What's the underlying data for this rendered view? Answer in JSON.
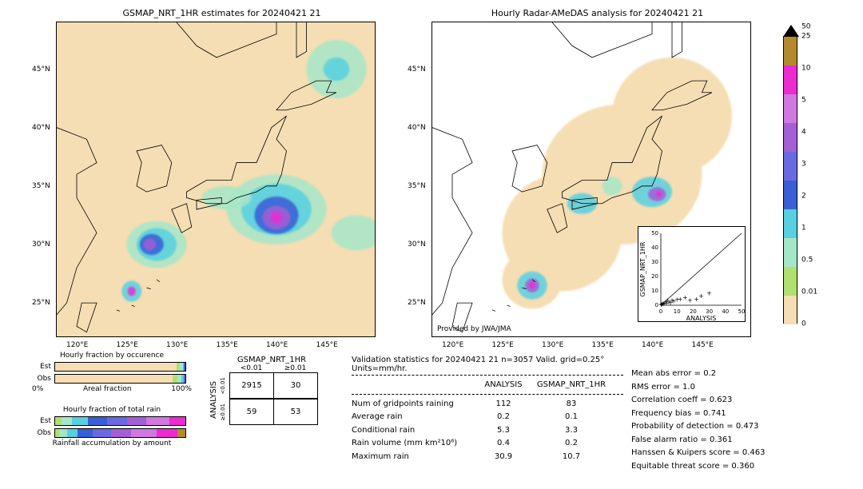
{
  "maps": {
    "left": {
      "title": "GSMAP_NRT_1HR estimates for 20240421 21"
    },
    "right": {
      "title": "Hourly Radar-AMeDAS analysis for 20240421 21",
      "provided": "Provided by JWA/JMA"
    },
    "lon_ticks": [
      120,
      125,
      130,
      135,
      140,
      145
    ],
    "lat_ticks": [
      25,
      30,
      35,
      40,
      45
    ],
    "lon_range": [
      118,
      150
    ],
    "lat_range": [
      22,
      49
    ],
    "background_color": "#f5deb3"
  },
  "precip_blobs_left": [
    {
      "lon": 128,
      "lat": 30,
      "rx": 3.0,
      "ry": 2.0,
      "color": "#a6e6c8"
    },
    {
      "lon": 128,
      "lat": 30,
      "rx": 2.0,
      "ry": 1.4,
      "color": "#57d0e0"
    },
    {
      "lon": 127.5,
      "lat": 30,
      "rx": 1.2,
      "ry": 0.9,
      "color": "#3a5ed6"
    },
    {
      "lon": 127.3,
      "lat": 30,
      "rx": 0.6,
      "ry": 0.5,
      "color": "#a45ed6"
    },
    {
      "lon": 140,
      "lat": 33,
      "rx": 5.0,
      "ry": 3.0,
      "color": "#a6e6c8"
    },
    {
      "lon": 140,
      "lat": 33,
      "rx": 3.5,
      "ry": 2.2,
      "color": "#57d0e0"
    },
    {
      "lon": 140,
      "lat": 32.5,
      "rx": 2.2,
      "ry": 1.6,
      "color": "#3a5ed6"
    },
    {
      "lon": 140,
      "lat": 32.3,
      "rx": 1.4,
      "ry": 1.0,
      "color": "#a45ed6"
    },
    {
      "lon": 140,
      "lat": 32.3,
      "rx": 0.6,
      "ry": 0.5,
      "color": "#ec2bd0"
    },
    {
      "lon": 125.5,
      "lat": 26,
      "rx": 1.0,
      "ry": 0.9,
      "color": "#57d0e0"
    },
    {
      "lon": 125.5,
      "lat": 26,
      "rx": 0.4,
      "ry": 0.4,
      "color": "#ec2bd0"
    },
    {
      "lon": 146,
      "lat": 45,
      "rx": 3.0,
      "ry": 2.5,
      "color": "#a6e6c8"
    },
    {
      "lon": 146,
      "lat": 45,
      "rx": 1.3,
      "ry": 1.0,
      "color": "#57d0e0"
    },
    {
      "lon": 148,
      "lat": 31,
      "rx": 2.5,
      "ry": 1.5,
      "color": "#a6e6c8"
    },
    {
      "lon": 135,
      "lat": 34,
      "rx": 2.5,
      "ry": 1.0,
      "color": "#a6e6c8"
    }
  ],
  "precip_blobs_right": [
    {
      "lon": 128,
      "lat": 26.5,
      "rx": 1.5,
      "ry": 1.2,
      "color": "#57d0e0"
    },
    {
      "lon": 128,
      "lat": 26.5,
      "rx": 0.7,
      "ry": 0.6,
      "color": "#a45ed6"
    },
    {
      "lon": 128,
      "lat": 26.5,
      "rx": 0.3,
      "ry": 0.3,
      "color": "#ec2bd0"
    },
    {
      "lon": 140,
      "lat": 34.5,
      "rx": 2.0,
      "ry": 1.3,
      "color": "#57d0e0"
    },
    {
      "lon": 140.5,
      "lat": 34.3,
      "rx": 0.9,
      "ry": 0.6,
      "color": "#a45ed6"
    },
    {
      "lon": 140.7,
      "lat": 34.3,
      "rx": 0.3,
      "ry": 0.25,
      "color": "#ec2bd0"
    },
    {
      "lon": 133,
      "lat": 33.5,
      "rx": 1.5,
      "ry": 0.9,
      "color": "#57d0e0"
    },
    {
      "lon": 136,
      "lat": 35,
      "rx": 1.0,
      "ry": 0.8,
      "color": "#a6e6c8"
    }
  ],
  "right_coverage": [
    {
      "lon": 131,
      "lat": 31,
      "rx": 6,
      "ry": 5
    },
    {
      "lon": 137,
      "lat": 36,
      "rx": 8,
      "ry": 6
    },
    {
      "lon": 142,
      "lat": 41,
      "rx": 6,
      "ry": 5
    },
    {
      "lon": 128,
      "lat": 27,
      "rx": 3,
      "ry": 2.5
    }
  ],
  "colorbar": {
    "labels": [
      "50",
      "25",
      "10",
      "5",
      "4",
      "3",
      "2",
      "1",
      "0.5",
      "0.01",
      "0"
    ],
    "segments": [
      {
        "color": "#000000",
        "triangle": true
      },
      {
        "color": "#b38a2e"
      },
      {
        "color": "#ec2bd0"
      },
      {
        "color": "#d077e0"
      },
      {
        "color": "#a45ed6"
      },
      {
        "color": "#6a6ae0"
      },
      {
        "color": "#3a5ed6"
      },
      {
        "color": "#57d0e0"
      },
      {
        "color": "#a6e6c8"
      },
      {
        "color": "#b0e070"
      },
      {
        "color": "#f5deb3"
      }
    ]
  },
  "scatter": {
    "xlabel": "ANALYSIS",
    "ylabel": "GSMAP_NRT_1HR",
    "lim": [
      0,
      50
    ],
    "ticks": [
      0,
      10,
      20,
      30,
      40,
      50
    ],
    "points": [
      [
        0.2,
        0.1
      ],
      [
        0.5,
        0.3
      ],
      [
        1,
        0.8
      ],
      [
        1.5,
        0.5
      ],
      [
        2,
        1.2
      ],
      [
        3,
        2
      ],
      [
        3.5,
        1
      ],
      [
        4,
        3
      ],
      [
        5,
        2
      ],
      [
        6,
        1.5
      ],
      [
        7,
        3
      ],
      [
        8,
        2.5
      ],
      [
        10,
        3.5
      ],
      [
        12,
        4
      ],
      [
        15,
        5
      ],
      [
        18,
        3
      ],
      [
        22,
        4
      ],
      [
        25,
        6
      ],
      [
        30,
        8
      ]
    ]
  },
  "occurrence": {
    "title": "Hourly fraction by occurence",
    "axis_lo": "0%",
    "axis_hi": "100%",
    "axis_mid": "Areal fraction",
    "rows": [
      {
        "label": "Est",
        "segs": [
          {
            "w": 93,
            "c": "#f5deb3"
          },
          {
            "w": 3,
            "c": "#b0e070"
          },
          {
            "w": 2,
            "c": "#a6e6c8"
          },
          {
            "w": 1,
            "c": "#57d0e0"
          },
          {
            "w": 1,
            "c": "#3a5ed6"
          }
        ]
      },
      {
        "label": "Obs",
        "segs": [
          {
            "w": 90,
            "c": "#f5deb3"
          },
          {
            "w": 4,
            "c": "#b0e070"
          },
          {
            "w": 3,
            "c": "#a6e6c8"
          },
          {
            "w": 1.5,
            "c": "#57d0e0"
          },
          {
            "w": 1,
            "c": "#3a5ed6"
          },
          {
            "w": 0.5,
            "c": "#a45ed6"
          }
        ]
      }
    ]
  },
  "totalrain": {
    "title": "Hourly fraction of total rain",
    "footer": "Rainfall accumulation by amount",
    "rows": [
      {
        "label": "Est",
        "segs": [
          {
            "w": 5,
            "c": "#b0e070"
          },
          {
            "w": 8,
            "c": "#a6e6c8"
          },
          {
            "w": 12,
            "c": "#57d0e0"
          },
          {
            "w": 15,
            "c": "#3a5ed6"
          },
          {
            "w": 15,
            "c": "#6a6ae0"
          },
          {
            "w": 15,
            "c": "#a45ed6"
          },
          {
            "w": 18,
            "c": "#d077e0"
          },
          {
            "w": 12,
            "c": "#ec2bd0"
          }
        ]
      },
      {
        "label": "Obs",
        "segs": [
          {
            "w": 3,
            "c": "#b0e070"
          },
          {
            "w": 6,
            "c": "#a6e6c8"
          },
          {
            "w": 8,
            "c": "#57d0e0"
          },
          {
            "w": 12,
            "c": "#3a5ed6"
          },
          {
            "w": 14,
            "c": "#6a6ae0"
          },
          {
            "w": 15,
            "c": "#a45ed6"
          },
          {
            "w": 20,
            "c": "#d077e0"
          },
          {
            "w": 16,
            "c": "#ec2bd0"
          },
          {
            "w": 6,
            "c": "#b38a2e"
          }
        ]
      }
    ]
  },
  "contingency": {
    "col_header": "GSMAP_NRT_1HR",
    "row_header": "ANALYSIS",
    "col_labels": [
      "<0.01",
      "≥0.01"
    ],
    "row_labels": [
      "<0.01",
      "≥0.01"
    ],
    "cells": [
      [
        "2915",
        "30"
      ],
      [
        "59",
        "53"
      ]
    ]
  },
  "stats": {
    "title": "Validation statistics for 20240421 21  n=3057 Valid. grid=0.25° Units=mm/hr.",
    "col1": "ANALYSIS",
    "col2": "GSMAP_NRT_1HR",
    "rows": [
      {
        "k": "Num of gridpoints raining",
        "v1": "112",
        "v2": "83"
      },
      {
        "k": "Average rain",
        "v1": "0.2",
        "v2": "0.1"
      },
      {
        "k": "Conditional rain",
        "v1": "5.3",
        "v2": "3.3"
      },
      {
        "k": "Rain volume (mm km²10⁶)",
        "v1": "0.4",
        "v2": "0.2"
      },
      {
        "k": "Maximum rain",
        "v1": "30.9",
        "v2": "10.7"
      }
    ]
  },
  "metrics": [
    {
      "k": "Mean abs error",
      "v": "0.2"
    },
    {
      "k": "RMS error",
      "v": "1.0"
    },
    {
      "k": "Correlation coeff",
      "v": "0.623"
    },
    {
      "k": "Frequency bias",
      "v": "0.741"
    },
    {
      "k": "Probability of detection",
      "v": "0.473"
    },
    {
      "k": "False alarm ratio",
      "v": "0.361"
    },
    {
      "k": "Hanssen & Kuipers score",
      "v": "0.463"
    },
    {
      "k": "Equitable threat score",
      "v": "0.360"
    }
  ]
}
